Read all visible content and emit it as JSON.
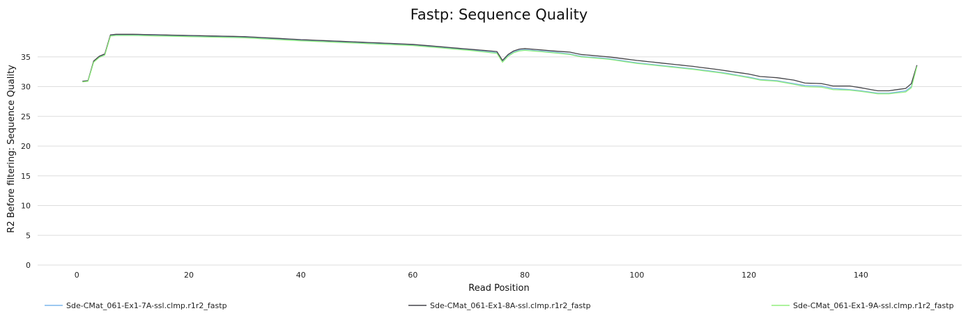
{
  "chart_data": {
    "type": "line",
    "title": "Fastp: Sequence Quality",
    "xlabel": "Read Position",
    "ylabel": "R2 Before filtering: Sequence Quality",
    "xlim": [
      -7,
      158
    ],
    "ylim": [
      0,
      40
    ],
    "xticks": [
      0,
      20,
      40,
      60,
      80,
      100,
      120,
      140
    ],
    "yticks": [
      0,
      5,
      10,
      15,
      20,
      25,
      30,
      35
    ],
    "grid": "horizontal",
    "legend_position": "bottom",
    "series": [
      {
        "name": "Sde-CMat_061-Ex1-7A-ssl.clmp.r1r2_fastp",
        "color": "#7cb5ec",
        "keypoints": [
          [
            1,
            30.9
          ],
          [
            2,
            31.0
          ],
          [
            3,
            34.2
          ],
          [
            4,
            35.0
          ],
          [
            5,
            35.4
          ],
          [
            6,
            38.6
          ],
          [
            7,
            38.7
          ],
          [
            10,
            38.7
          ],
          [
            20,
            38.5
          ],
          [
            30,
            38.3
          ],
          [
            40,
            37.8
          ],
          [
            50,
            37.4
          ],
          [
            60,
            37.0
          ],
          [
            70,
            36.2
          ],
          [
            75,
            35.7
          ],
          [
            76,
            34.2
          ],
          [
            77,
            35.2
          ],
          [
            78,
            35.8
          ],
          [
            79,
            36.1
          ],
          [
            80,
            36.2
          ],
          [
            85,
            35.8
          ],
          [
            88,
            35.5
          ],
          [
            90,
            35.1
          ],
          [
            95,
            34.7
          ],
          [
            100,
            34.0
          ],
          [
            105,
            33.5
          ],
          [
            110,
            33.0
          ],
          [
            115,
            32.4
          ],
          [
            120,
            31.6
          ],
          [
            122,
            31.2
          ],
          [
            125,
            31.0
          ],
          [
            128,
            30.5
          ],
          [
            130,
            30.2
          ],
          [
            133,
            30.1
          ],
          [
            135,
            29.7
          ],
          [
            138,
            29.5
          ],
          [
            140,
            29.3
          ],
          [
            143,
            28.9
          ],
          [
            145,
            28.9
          ],
          [
            148,
            29.3
          ],
          [
            149,
            30.0
          ],
          [
            150,
            33.5
          ]
        ]
      },
      {
        "name": "Sde-CMat_061-Ex1-8A-ssl.clmp.r1r2_fastp",
        "color": "#434348",
        "keypoints": [
          [
            1,
            30.9
          ],
          [
            2,
            31.0
          ],
          [
            3,
            34.3
          ],
          [
            4,
            35.1
          ],
          [
            5,
            35.5
          ],
          [
            6,
            38.7
          ],
          [
            7,
            38.8
          ],
          [
            10,
            38.8
          ],
          [
            20,
            38.6
          ],
          [
            30,
            38.4
          ],
          [
            40,
            37.9
          ],
          [
            50,
            37.5
          ],
          [
            60,
            37.1
          ],
          [
            70,
            36.3
          ],
          [
            75,
            35.9
          ],
          [
            76,
            34.4
          ],
          [
            77,
            35.4
          ],
          [
            78,
            36.0
          ],
          [
            79,
            36.3
          ],
          [
            80,
            36.4
          ],
          [
            85,
            36.0
          ],
          [
            88,
            35.8
          ],
          [
            90,
            35.4
          ],
          [
            95,
            35.0
          ],
          [
            100,
            34.4
          ],
          [
            105,
            33.9
          ],
          [
            110,
            33.4
          ],
          [
            115,
            32.8
          ],
          [
            120,
            32.1
          ],
          [
            122,
            31.7
          ],
          [
            125,
            31.5
          ],
          [
            128,
            31.1
          ],
          [
            130,
            30.6
          ],
          [
            133,
            30.5
          ],
          [
            135,
            30.1
          ],
          [
            138,
            30.1
          ],
          [
            140,
            29.8
          ],
          [
            143,
            29.3
          ],
          [
            145,
            29.3
          ],
          [
            148,
            29.7
          ],
          [
            149,
            30.5
          ],
          [
            150,
            33.6
          ]
        ]
      },
      {
        "name": "Sde-CMat_061-Ex1-9A-ssl.clmp.r1r2_fastp",
        "color": "#90ed7d",
        "keypoints": [
          [
            1,
            30.8
          ],
          [
            2,
            30.9
          ],
          [
            3,
            34.1
          ],
          [
            4,
            34.9
          ],
          [
            5,
            35.3
          ],
          [
            6,
            38.5
          ],
          [
            7,
            38.6
          ],
          [
            10,
            38.6
          ],
          [
            20,
            38.4
          ],
          [
            30,
            38.2
          ],
          [
            40,
            37.7
          ],
          [
            50,
            37.3
          ],
          [
            60,
            36.9
          ],
          [
            70,
            36.1
          ],
          [
            75,
            35.6
          ],
          [
            76,
            34.1
          ],
          [
            77,
            35.1
          ],
          [
            78,
            35.7
          ],
          [
            79,
            36.0
          ],
          [
            80,
            36.1
          ],
          [
            85,
            35.7
          ],
          [
            88,
            35.4
          ],
          [
            90,
            35.0
          ],
          [
            95,
            34.6
          ],
          [
            100,
            33.9
          ],
          [
            105,
            33.4
          ],
          [
            110,
            32.9
          ],
          [
            115,
            32.3
          ],
          [
            120,
            31.5
          ],
          [
            122,
            31.1
          ],
          [
            125,
            30.9
          ],
          [
            128,
            30.4
          ],
          [
            130,
            30.0
          ],
          [
            133,
            29.9
          ],
          [
            135,
            29.5
          ],
          [
            138,
            29.4
          ],
          [
            140,
            29.2
          ],
          [
            143,
            28.8
          ],
          [
            145,
            28.8
          ],
          [
            148,
            29.1
          ],
          [
            149,
            29.8
          ],
          [
            150,
            33.4
          ]
        ]
      }
    ]
  }
}
